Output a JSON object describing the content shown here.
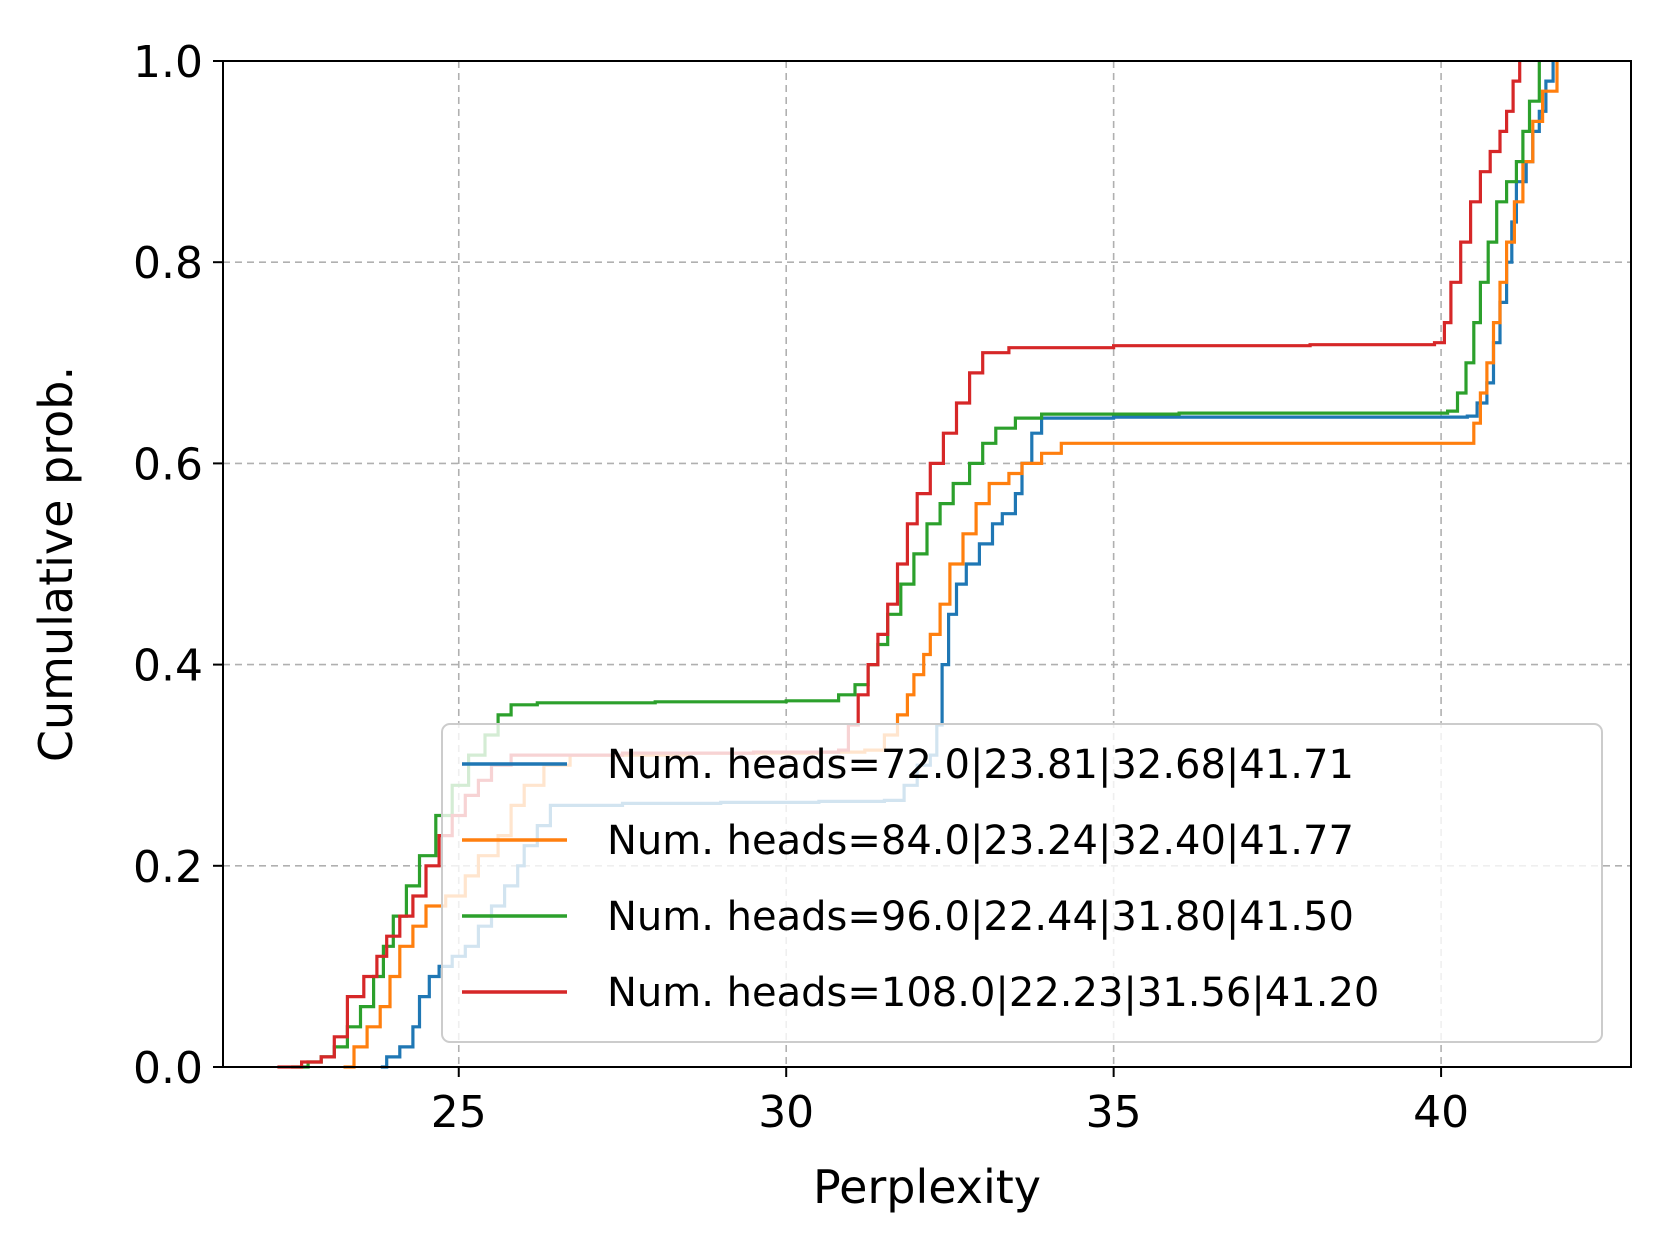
{
  "chart_data": {
    "type": "line",
    "xlabel": "Perplexity",
    "ylabel": "Cumulative prob.",
    "xlim": [
      21.4,
      42.9
    ],
    "ylim": [
      0.0,
      1.0
    ],
    "xticks": [
      25,
      30,
      35,
      40
    ],
    "yticks": [
      0.0,
      0.2,
      0.4,
      0.6,
      0.8,
      1.0
    ],
    "xtick_labels": [
      "25",
      "30",
      "35",
      "40"
    ],
    "ytick_labels": [
      "0.0",
      "0.2",
      "0.4",
      "0.6",
      "0.8",
      "1.0"
    ],
    "grid": true,
    "legend_position": "lower-right",
    "step": true,
    "series": [
      {
        "name": "Num. heads=72.0|23.81|32.68|41.71",
        "color": "#1f77b4",
        "points": [
          [
            23.81,
            0.0
          ],
          [
            23.9,
            0.01
          ],
          [
            24.1,
            0.02
          ],
          [
            24.3,
            0.04
          ],
          [
            24.4,
            0.07
          ],
          [
            24.55,
            0.09
          ],
          [
            24.7,
            0.1
          ],
          [
            24.9,
            0.11
          ],
          [
            25.1,
            0.12
          ],
          [
            25.3,
            0.14
          ],
          [
            25.5,
            0.16
          ],
          [
            25.7,
            0.18
          ],
          [
            25.9,
            0.2
          ],
          [
            26.0,
            0.22
          ],
          [
            26.2,
            0.24
          ],
          [
            26.4,
            0.26
          ],
          [
            27.5,
            0.262
          ],
          [
            29.0,
            0.263
          ],
          [
            30.5,
            0.264
          ],
          [
            31.5,
            0.265
          ],
          [
            31.8,
            0.28
          ],
          [
            32.0,
            0.3
          ],
          [
            32.2,
            0.31
          ],
          [
            32.3,
            0.34
          ],
          [
            32.38,
            0.4
          ],
          [
            32.48,
            0.45
          ],
          [
            32.6,
            0.48
          ],
          [
            32.75,
            0.5
          ],
          [
            32.95,
            0.52
          ],
          [
            33.15,
            0.54
          ],
          [
            33.3,
            0.55
          ],
          [
            33.5,
            0.57
          ],
          [
            33.6,
            0.6
          ],
          [
            33.75,
            0.63
          ],
          [
            33.9,
            0.645
          ],
          [
            35.0,
            0.646
          ],
          [
            38.0,
            0.646
          ],
          [
            40.4,
            0.647
          ],
          [
            40.55,
            0.66
          ],
          [
            40.7,
            0.68
          ],
          [
            40.8,
            0.72
          ],
          [
            40.9,
            0.76
          ],
          [
            41.0,
            0.8
          ],
          [
            41.08,
            0.84
          ],
          [
            41.15,
            0.88
          ],
          [
            41.3,
            0.9
          ],
          [
            41.4,
            0.93
          ],
          [
            41.5,
            0.95
          ],
          [
            41.6,
            0.98
          ],
          [
            41.71,
            1.0
          ]
        ]
      },
      {
        "name": "Num. heads=84.0|23.24|32.40|41.77",
        "color": "#ff7f0e",
        "points": [
          [
            23.24,
            0.0
          ],
          [
            23.4,
            0.02
          ],
          [
            23.6,
            0.04
          ],
          [
            23.8,
            0.06
          ],
          [
            23.95,
            0.09
          ],
          [
            24.1,
            0.12
          ],
          [
            24.3,
            0.14
          ],
          [
            24.5,
            0.16
          ],
          [
            24.8,
            0.17
          ],
          [
            25.1,
            0.19
          ],
          [
            25.3,
            0.21
          ],
          [
            25.6,
            0.23
          ],
          [
            25.8,
            0.26
          ],
          [
            26.0,
            0.28
          ],
          [
            26.3,
            0.3
          ],
          [
            26.7,
            0.31
          ],
          [
            28.5,
            0.312
          ],
          [
            30.5,
            0.313
          ],
          [
            31.2,
            0.315
          ],
          [
            31.5,
            0.33
          ],
          [
            31.7,
            0.35
          ],
          [
            31.85,
            0.37
          ],
          [
            31.95,
            0.39
          ],
          [
            32.1,
            0.41
          ],
          [
            32.2,
            0.43
          ],
          [
            32.35,
            0.46
          ],
          [
            32.5,
            0.5
          ],
          [
            32.7,
            0.53
          ],
          [
            32.9,
            0.56
          ],
          [
            33.1,
            0.58
          ],
          [
            33.4,
            0.59
          ],
          [
            33.6,
            0.6
          ],
          [
            33.9,
            0.61
          ],
          [
            34.2,
            0.62
          ],
          [
            36.0,
            0.62
          ],
          [
            38.5,
            0.62
          ],
          [
            40.3,
            0.62
          ],
          [
            40.5,
            0.64
          ],
          [
            40.6,
            0.67
          ],
          [
            40.7,
            0.7
          ],
          [
            40.8,
            0.74
          ],
          [
            40.9,
            0.78
          ],
          [
            41.0,
            0.82
          ],
          [
            41.12,
            0.86
          ],
          [
            41.25,
            0.9
          ],
          [
            41.4,
            0.94
          ],
          [
            41.55,
            0.97
          ],
          [
            41.77,
            1.0
          ]
        ]
      },
      {
        "name": "Num. heads=96.0|22.44|31.80|41.50",
        "color": "#2ca02c",
        "points": [
          [
            22.44,
            0.0
          ],
          [
            22.7,
            0.005
          ],
          [
            22.9,
            0.01
          ],
          [
            23.1,
            0.02
          ],
          [
            23.3,
            0.04
          ],
          [
            23.5,
            0.06
          ],
          [
            23.7,
            0.09
          ],
          [
            23.85,
            0.12
          ],
          [
            24.0,
            0.15
          ],
          [
            24.2,
            0.18
          ],
          [
            24.4,
            0.21
          ],
          [
            24.65,
            0.25
          ],
          [
            24.9,
            0.28
          ],
          [
            25.15,
            0.31
          ],
          [
            25.4,
            0.33
          ],
          [
            25.6,
            0.35
          ],
          [
            25.8,
            0.36
          ],
          [
            26.2,
            0.362
          ],
          [
            28.0,
            0.363
          ],
          [
            30.0,
            0.364
          ],
          [
            30.8,
            0.37
          ],
          [
            31.05,
            0.38
          ],
          [
            31.25,
            0.4
          ],
          [
            31.4,
            0.42
          ],
          [
            31.55,
            0.45
          ],
          [
            31.75,
            0.48
          ],
          [
            31.95,
            0.51
          ],
          [
            32.15,
            0.54
          ],
          [
            32.35,
            0.56
          ],
          [
            32.55,
            0.58
          ],
          [
            32.8,
            0.6
          ],
          [
            33.0,
            0.62
          ],
          [
            33.2,
            0.635
          ],
          [
            33.5,
            0.645
          ],
          [
            33.9,
            0.649
          ],
          [
            36.0,
            0.65
          ],
          [
            38.5,
            0.65
          ],
          [
            40.1,
            0.652
          ],
          [
            40.25,
            0.67
          ],
          [
            40.38,
            0.7
          ],
          [
            40.5,
            0.74
          ],
          [
            40.6,
            0.78
          ],
          [
            40.72,
            0.82
          ],
          [
            40.85,
            0.86
          ],
          [
            41.0,
            0.88
          ],
          [
            41.15,
            0.9
          ],
          [
            41.25,
            0.93
          ],
          [
            41.35,
            0.96
          ],
          [
            41.5,
            1.0
          ]
        ]
      },
      {
        "name": "Num. heads=108.0|22.23|31.56|41.20",
        "color": "#d62728",
        "points": [
          [
            22.23,
            0.0
          ],
          [
            22.6,
            0.005
          ],
          [
            22.9,
            0.01
          ],
          [
            23.1,
            0.03
          ],
          [
            23.3,
            0.07
          ],
          [
            23.55,
            0.09
          ],
          [
            23.75,
            0.11
          ],
          [
            23.9,
            0.13
          ],
          [
            24.1,
            0.15
          ],
          [
            24.3,
            0.17
          ],
          [
            24.5,
            0.2
          ],
          [
            24.7,
            0.23
          ],
          [
            24.9,
            0.25
          ],
          [
            25.1,
            0.27
          ],
          [
            25.3,
            0.285
          ],
          [
            25.5,
            0.3
          ],
          [
            25.8,
            0.31
          ],
          [
            27.5,
            0.312
          ],
          [
            29.5,
            0.313
          ],
          [
            30.8,
            0.315
          ],
          [
            30.95,
            0.34
          ],
          [
            31.1,
            0.37
          ],
          [
            31.25,
            0.4
          ],
          [
            31.4,
            0.43
          ],
          [
            31.55,
            0.46
          ],
          [
            31.7,
            0.5
          ],
          [
            31.85,
            0.54
          ],
          [
            32.0,
            0.57
          ],
          [
            32.2,
            0.6
          ],
          [
            32.4,
            0.63
          ],
          [
            32.6,
            0.66
          ],
          [
            32.8,
            0.69
          ],
          [
            33.0,
            0.71
          ],
          [
            33.4,
            0.715
          ],
          [
            35.0,
            0.717
          ],
          [
            38.0,
            0.718
          ],
          [
            39.9,
            0.72
          ],
          [
            40.05,
            0.74
          ],
          [
            40.15,
            0.78
          ],
          [
            40.3,
            0.82
          ],
          [
            40.45,
            0.86
          ],
          [
            40.6,
            0.89
          ],
          [
            40.75,
            0.91
          ],
          [
            40.9,
            0.93
          ],
          [
            41.0,
            0.95
          ],
          [
            41.1,
            0.98
          ],
          [
            41.2,
            1.0
          ]
        ]
      }
    ]
  }
}
